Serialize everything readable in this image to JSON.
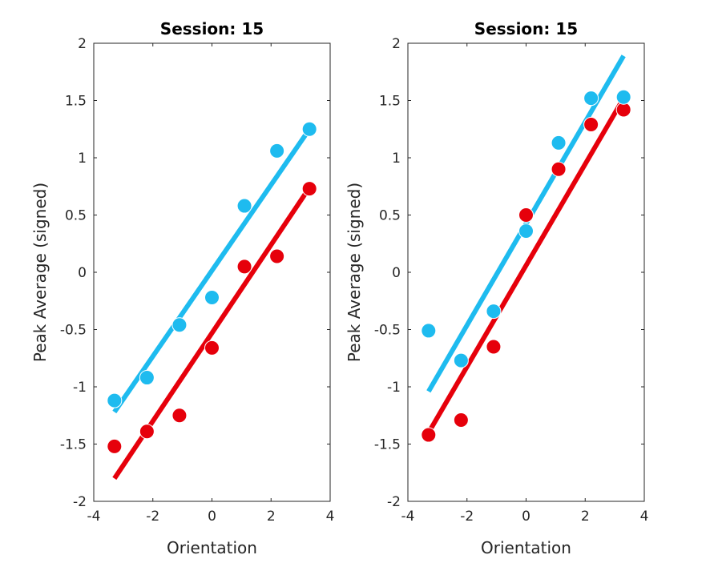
{
  "chart_data": [
    {
      "type": "scatter",
      "title": "Session: 15",
      "xlabel": "Orientation",
      "ylabel": "Peak Average (signed)",
      "xlim": [
        -4,
        4
      ],
      "ylim": [
        -2,
        2
      ],
      "xticks": [
        "-4",
        "-2",
        "0",
        "2",
        "4"
      ],
      "yticks": [
        "2",
        "1.5",
        "1",
        "0.5",
        "0",
        "-0.5",
        "-1",
        "-1.5",
        "-2"
      ],
      "grid": false,
      "x": [
        -3.3,
        -2.2,
        -1.1,
        0,
        1.1,
        2.2,
        3.3
      ],
      "series": [
        {
          "color": "#e6000b",
          "values": [
            -1.52,
            -1.39,
            -1.25,
            -0.66,
            0.05,
            0.14,
            0.73
          ],
          "fit": {
            "x": [
              -3.3,
              3.3
            ],
            "y": [
              -1.8,
              0.74
            ]
          }
        },
        {
          "color": "#1ebbef",
          "values": [
            -1.12,
            -0.92,
            -0.46,
            -0.22,
            0.58,
            1.06,
            1.25
          ],
          "fit": {
            "x": [
              -3.3,
              3.3
            ],
            "y": [
              -1.22,
              1.25
            ]
          }
        }
      ]
    },
    {
      "type": "scatter",
      "title": "Session: 15",
      "xlabel": "Orientation",
      "ylabel": "Peak Average (signed)",
      "xlim": [
        -4,
        4
      ],
      "ylim": [
        -2,
        2
      ],
      "xticks": [
        "-4",
        "-2",
        "0",
        "2",
        "4"
      ],
      "yticks": [
        "2",
        "1.5",
        "1",
        "0.5",
        "0",
        "-0.5",
        "-1",
        "-1.5",
        "-2"
      ],
      "grid": false,
      "x": [
        -3.3,
        -2.2,
        -1.1,
        0,
        1.1,
        2.2,
        3.3
      ],
      "series": [
        {
          "color": "#e6000b",
          "values": [
            -1.42,
            -1.29,
            -0.65,
            0.5,
            0.9,
            1.29,
            1.42
          ],
          "fit": {
            "x": [
              -3.3,
              3.3
            ],
            "y": [
              -1.4,
              1.52
            ]
          }
        },
        {
          "color": "#1ebbef",
          "values": [
            -0.51,
            -0.77,
            -0.34,
            0.36,
            1.13,
            1.52,
            1.53
          ],
          "fit": {
            "x": [
              -3.3,
              3.3
            ],
            "y": [
              -1.04,
              1.89
            ]
          }
        }
      ]
    }
  ]
}
